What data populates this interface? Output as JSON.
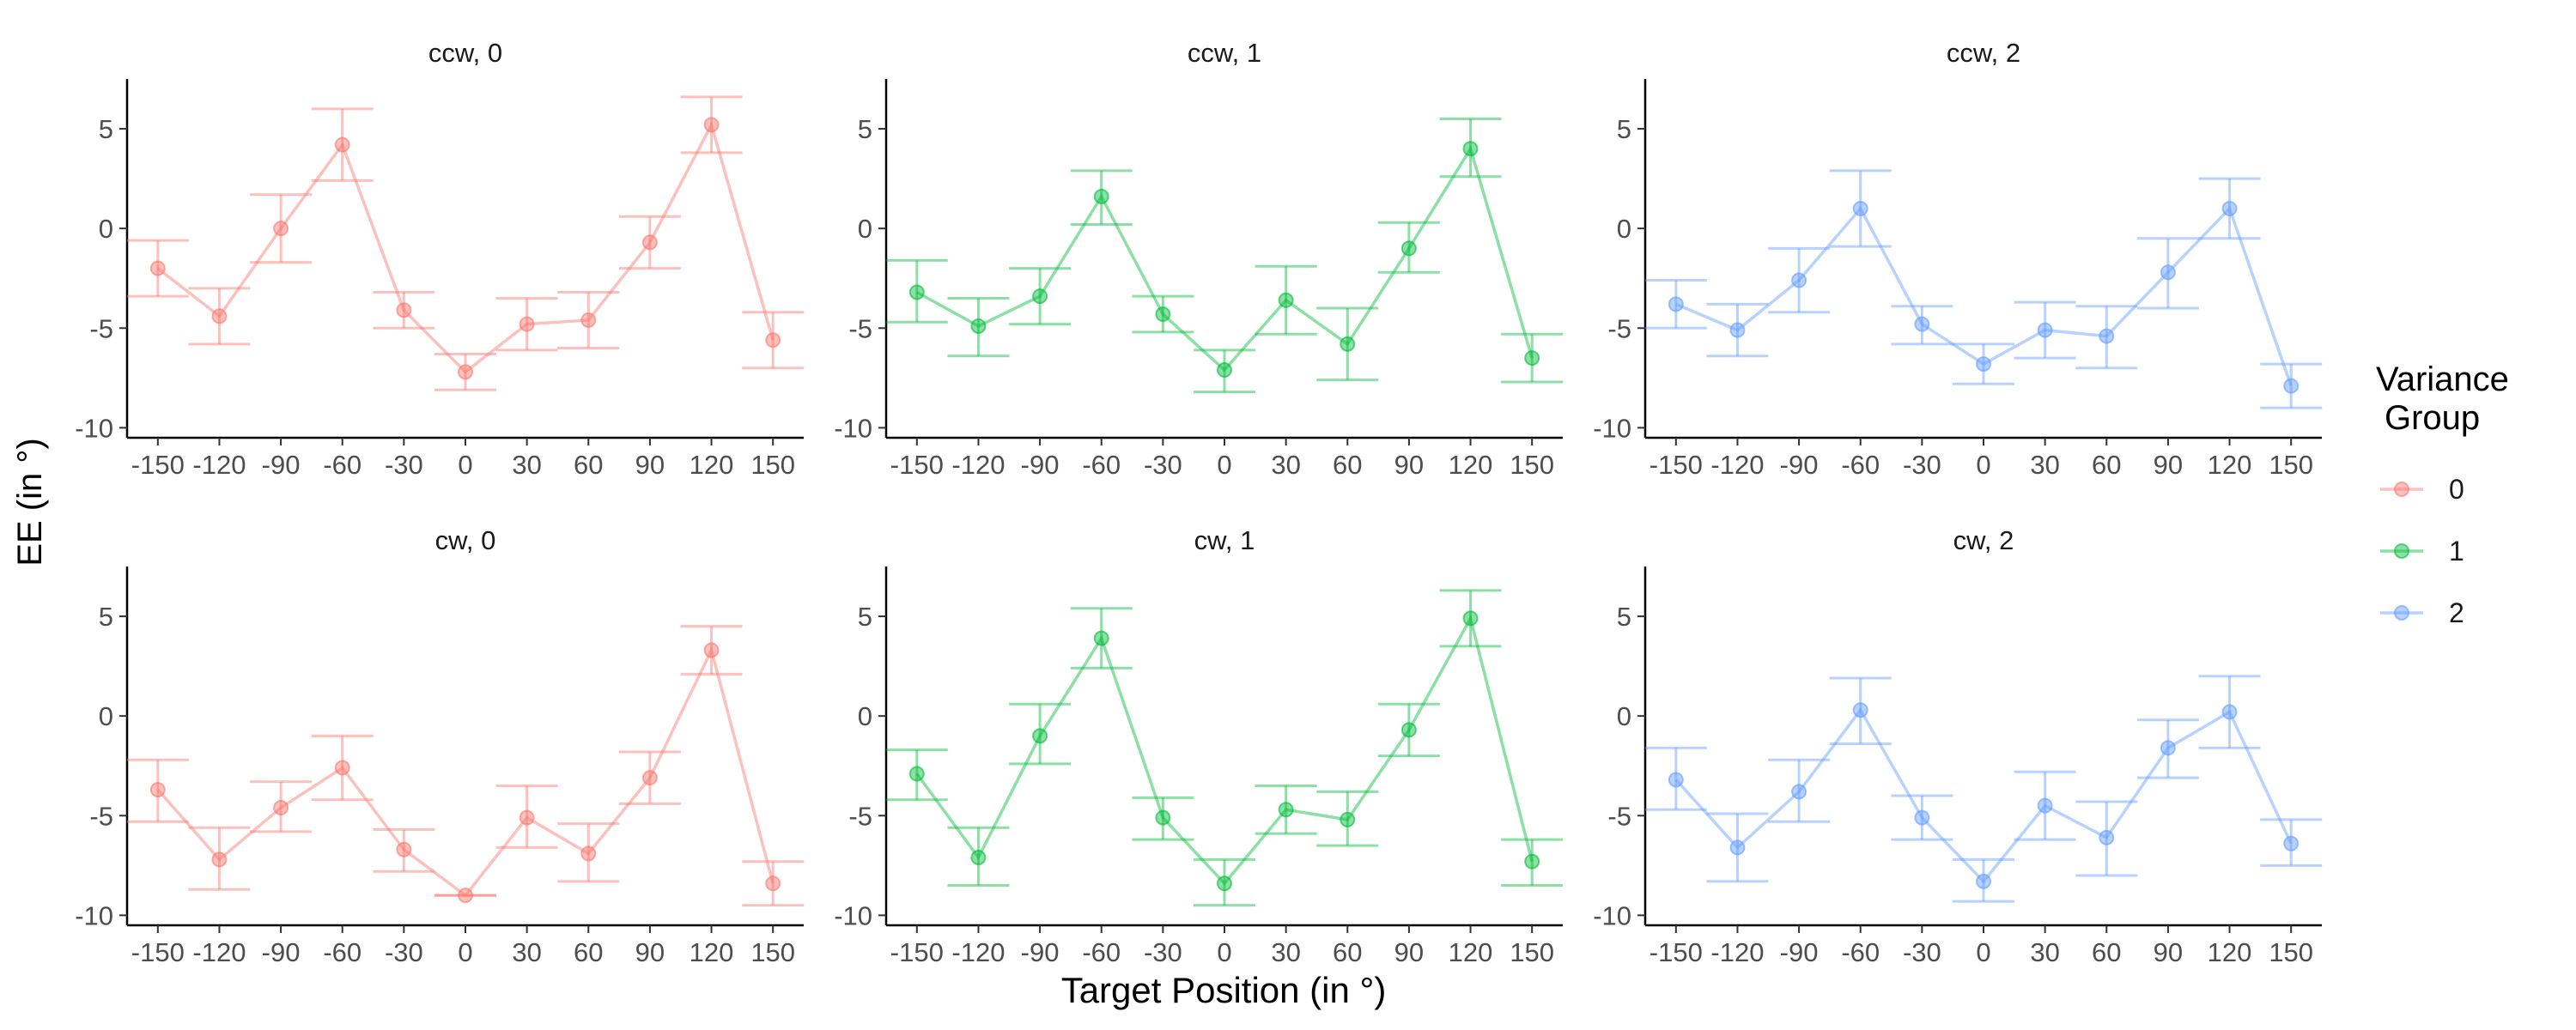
{
  "figure": {
    "ylabel": "EE (in °)",
    "xlabel": "Target Position (in °)",
    "legend_title_line1": "Variance",
    "legend_title_line2": "Group",
    "legend_placement": "right"
  },
  "colors": {
    "0": "#F8766D",
    "1": "#00BA38",
    "2": "#619CFF"
  },
  "chart_data": {
    "type": "line",
    "grid": false,
    "x": [
      -150,
      -120,
      -90,
      -60,
      -30,
      0,
      30,
      60,
      90,
      120,
      150
    ],
    "x_tick_labels": [
      "-150",
      "-120",
      "-90",
      "-60",
      "-30",
      "0",
      "30",
      "60",
      "90",
      "120",
      "150"
    ],
    "y_ticks": [
      5,
      0,
      -5,
      -10
    ],
    "y_tick_labels": [
      "5",
      "0",
      "-5",
      "-10"
    ],
    "ylim": [
      -10.5,
      7.5
    ],
    "xlim": [
      -165,
      165
    ],
    "legend": [
      {
        "label": "0",
        "color_key": "0"
      },
      {
        "label": "1",
        "color_key": "1"
      },
      {
        "label": "2",
        "color_key": "2"
      }
    ],
    "panels": [
      {
        "title": "ccw, 0",
        "group": "0",
        "y": [
          -2.0,
          -4.4,
          0.0,
          4.2,
          -4.1,
          -7.2,
          -4.8,
          -4.6,
          -0.7,
          5.2,
          -5.6
        ],
        "lower": [
          -3.4,
          -5.8,
          -1.7,
          2.4,
          -5.0,
          -8.1,
          -6.1,
          -6.0,
          -2.0,
          3.8,
          -7.0
        ],
        "upper": [
          -0.6,
          -3.0,
          1.7,
          6.0,
          -3.2,
          -6.3,
          -3.5,
          -3.2,
          0.6,
          6.6,
          -4.2
        ]
      },
      {
        "title": "ccw, 1",
        "group": "1",
        "y": [
          -3.2,
          -4.9,
          -3.4,
          1.6,
          -4.3,
          -7.1,
          -3.6,
          -5.8,
          -1.0,
          4.0,
          -6.5
        ],
        "lower": [
          -4.7,
          -6.4,
          -4.8,
          0.2,
          -5.2,
          -8.2,
          -5.3,
          -7.6,
          -2.2,
          2.6,
          -7.7
        ],
        "upper": [
          -1.6,
          -3.5,
          -2.0,
          2.9,
          -3.4,
          -6.1,
          -1.9,
          -4.0,
          0.3,
          5.5,
          -5.3
        ]
      },
      {
        "title": "ccw, 2",
        "group": "2",
        "y": [
          -3.8,
          -5.1,
          -2.6,
          1.0,
          -4.8,
          -6.8,
          -5.1,
          -5.4,
          -2.2,
          1.0,
          -7.9
        ],
        "lower": [
          -5.0,
          -6.4,
          -4.2,
          -0.9,
          -5.8,
          -7.8,
          -6.5,
          -7.0,
          -4.0,
          -0.5,
          -9.0
        ],
        "upper": [
          -2.6,
          -3.8,
          -1.0,
          2.9,
          -3.9,
          -5.8,
          -3.7,
          -3.9,
          -0.5,
          2.5,
          -6.8
        ]
      },
      {
        "title": "cw, 0",
        "group": "0",
        "y": [
          -3.7,
          -7.2,
          -4.6,
          -2.6,
          -6.7,
          -9.0,
          -5.1,
          -6.9,
          -3.1,
          3.3,
          -8.4
        ],
        "lower": [
          -5.3,
          -8.7,
          -5.8,
          -4.2,
          -7.8,
          -9.0,
          -6.6,
          -8.3,
          -4.4,
          2.1,
          -9.5
        ],
        "upper": [
          -2.2,
          -5.6,
          -3.3,
          -1.0,
          -5.7,
          -9.0,
          -3.5,
          -5.4,
          -1.8,
          4.5,
          -7.3
        ]
      },
      {
        "title": "cw, 1",
        "group": "1",
        "y": [
          -2.9,
          -7.1,
          -1.0,
          3.9,
          -5.1,
          -8.4,
          -4.7,
          -5.2,
          -0.7,
          4.9,
          -7.3
        ],
        "lower": [
          -4.2,
          -8.5,
          -2.4,
          2.4,
          -6.2,
          -9.5,
          -5.9,
          -6.5,
          -2.0,
          3.5,
          -8.5
        ],
        "upper": [
          -1.7,
          -5.6,
          0.6,
          5.4,
          -4.1,
          -7.2,
          -3.5,
          -3.8,
          0.6,
          6.3,
          -6.2
        ]
      },
      {
        "title": "cw, 2",
        "group": "2",
        "y": [
          -3.2,
          -6.6,
          -3.8,
          0.3,
          -5.1,
          -8.3,
          -4.5,
          -6.1,
          -1.6,
          0.2,
          -6.4
        ],
        "lower": [
          -4.7,
          -8.3,
          -5.3,
          -1.4,
          -6.2,
          -9.3,
          -6.2,
          -8.0,
          -3.1,
          -1.6,
          -7.5
        ],
        "upper": [
          -1.6,
          -4.9,
          -2.2,
          1.9,
          -4.0,
          -7.2,
          -2.8,
          -4.3,
          -0.2,
          2.0,
          -5.2
        ]
      }
    ]
  }
}
